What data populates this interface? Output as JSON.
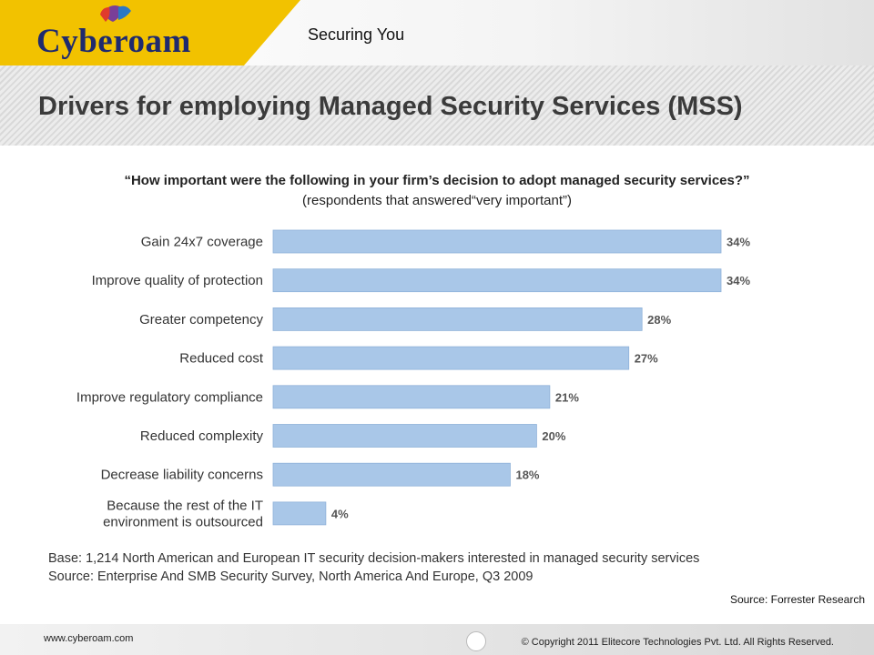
{
  "header": {
    "logo_text": "Cyberoam",
    "tagline": "Securing You",
    "accent": "#f2c200"
  },
  "slide": {
    "title": "Drivers for employing Managed Security Services (MSS)"
  },
  "chart_data": {
    "type": "bar",
    "orientation": "horizontal",
    "title": "“How important were the following in your firm’s decision to adopt managed security services?”",
    "subtitle": "(respondents that answered“very important”)",
    "categories": [
      "Gain 24x7 coverage",
      "Improve quality of protection",
      "Greater competency",
      "Reduced cost",
      "Improve regulatory compliance",
      "Reduced complexity",
      "Decrease liability concerns",
      "Because the rest of the IT environment is outsourced"
    ],
    "category_lines": [
      [
        "Gain 24x7 coverage"
      ],
      [
        "Improve quality of protection"
      ],
      [
        "Greater competency"
      ],
      [
        "Reduced cost"
      ],
      [
        "Improve regulatory compliance"
      ],
      [
        "Reduced complexity"
      ],
      [
        "Decrease liability concerns"
      ],
      [
        "Because the rest of the IT",
        "environment is outsourced"
      ]
    ],
    "values": [
      34,
      34,
      28,
      27,
      21,
      20,
      18,
      4
    ],
    "value_labels": [
      "34%",
      "34%",
      "28%",
      "27%",
      "21%",
      "20%",
      "18%",
      "4%"
    ],
    "unit": "%",
    "xlim": [
      0,
      34
    ],
    "bar_color": "#a9c7e8",
    "bar_border": "#8fb2d9",
    "grid": false,
    "legend": "none"
  },
  "notes": {
    "base": "Base: 1,214 North American and European IT security decision-makers interested in managed security services",
    "source": "Source: Enterprise And SMB Security Survey, North America And Europe, Q3 2009",
    "source_right": "Source: Forrester Research"
  },
  "footer": {
    "url": "www.cyberoam.com",
    "copyright": "© Copyright 2011 Elitecore Technologies Pvt. Ltd. All Rights Reserved."
  }
}
